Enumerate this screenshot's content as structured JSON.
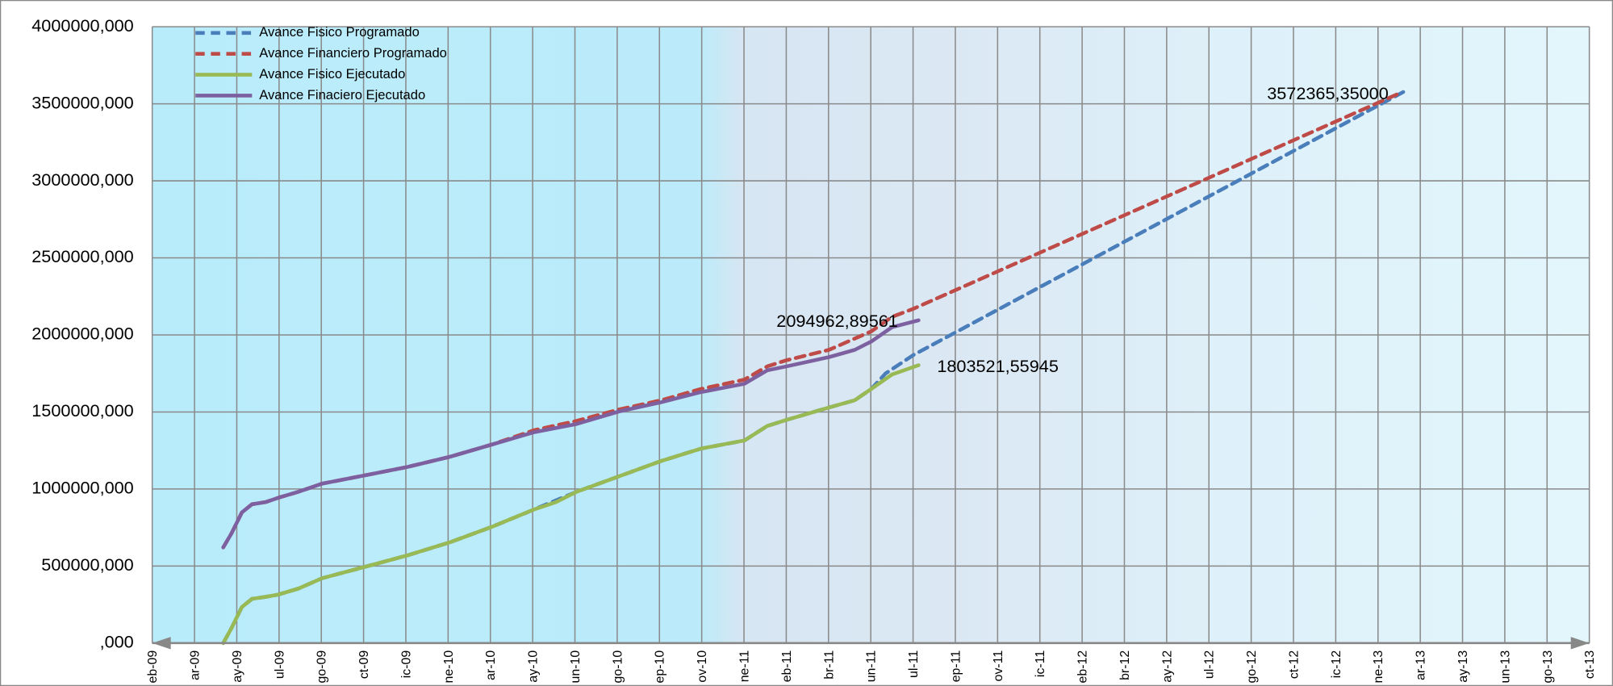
{
  "chart_data": {
    "type": "line",
    "xlim": [
      0,
      34
    ],
    "xticks": [
      {
        "value": 0,
        "label": "eb-09"
      },
      {
        "value": 1,
        "label": "ar-09"
      },
      {
        "value": 2,
        "label": "ay-09"
      },
      {
        "value": 3,
        "label": "ul-09"
      },
      {
        "value": 4,
        "label": "go-09"
      },
      {
        "value": 5,
        "label": "ct-09"
      },
      {
        "value": 6,
        "label": "ic-09"
      },
      {
        "value": 7,
        "label": "ne-10"
      },
      {
        "value": 8,
        "label": "ar-10"
      },
      {
        "value": 9,
        "label": "ay-10"
      },
      {
        "value": 10,
        "label": "un-10"
      },
      {
        "value": 11,
        "label": "go-10"
      },
      {
        "value": 12,
        "label": "ep-10"
      },
      {
        "value": 13,
        "label": "ov-10"
      },
      {
        "value": 14,
        "label": "ne-11"
      },
      {
        "value": 15,
        "label": "eb-11"
      },
      {
        "value": 16,
        "label": "br-11"
      },
      {
        "value": 17,
        "label": "un-11"
      },
      {
        "value": 18,
        "label": "ul-11"
      },
      {
        "value": 19,
        "label": "ep-11"
      },
      {
        "value": 20,
        "label": "ov-11"
      },
      {
        "value": 21,
        "label": "ic-11"
      },
      {
        "value": 22,
        "label": "eb-12"
      },
      {
        "value": 23,
        "label": "br-12"
      },
      {
        "value": 24,
        "label": "ay-12"
      },
      {
        "value": 25,
        "label": "ul-12"
      },
      {
        "value": 26,
        "label": "go-12"
      },
      {
        "value": 27,
        "label": "ct-12"
      },
      {
        "value": 28,
        "label": "ic-12"
      },
      {
        "value": 29,
        "label": "ne-13"
      },
      {
        "value": 30,
        "label": "ar-13"
      },
      {
        "value": 31,
        "label": "ay-13"
      },
      {
        "value": 32,
        "label": "un-13"
      },
      {
        "value": 33,
        "label": "go-13"
      },
      {
        "value": 34,
        "label": "ct-13"
      }
    ],
    "ylim": [
      0,
      4000000
    ],
    "yticks": [
      {
        "value": 0,
        "label": ",000"
      },
      {
        "value": 500000,
        "label": "500000,000"
      },
      {
        "value": 1000000,
        "label": "1000000,000"
      },
      {
        "value": 1500000,
        "label": "1500000,000"
      },
      {
        "value": 2000000,
        "label": "2000000,000"
      },
      {
        "value": 2500000,
        "label": "2500000,000"
      },
      {
        "value": 3000000,
        "label": "3000000,000"
      },
      {
        "value": 3500000,
        "label": "3500000,000"
      },
      {
        "value": 4000000,
        "label": "4000000,000"
      }
    ],
    "grid": true,
    "legend": "top-left",
    "series": [
      {
        "name": "Avance Fisico Programado",
        "color": "#4a7ebb",
        "dashed": true,
        "x": [
          1.68,
          1.88,
          2.12,
          2.36,
          2.68,
          2.97,
          3.46,
          4.02,
          5.02,
          6.02,
          7.04,
          8.04,
          9.04,
          10.04,
          11.04,
          12.04,
          12.98,
          14.01,
          14.55,
          15.01,
          16.01,
          16.62,
          17.01,
          17.35,
          18.01,
          29.71
        ],
        "values": [
          0,
          100000,
          234000,
          287000,
          300000,
          314000,
          354000,
          421000,
          494000,
          568000,
          654000,
          755000,
          868000,
          982000,
          1082000,
          1182000,
          1262000,
          1315000,
          1409000,
          1449000,
          1529000,
          1576000,
          1649000,
          1750000,
          1870000,
          3593000
        ]
      },
      {
        "name": "Avance Financiero Programado",
        "color": "#be4b48",
        "dashed": true,
        "x": [
          1.68,
          1.88,
          2.12,
          2.36,
          2.68,
          2.97,
          3.46,
          4.02,
          5.02,
          6.02,
          7.04,
          8.04,
          9.04,
          10.04,
          11.04,
          12.04,
          12.98,
          14.01,
          14.55,
          15.01,
          16.01,
          17.01,
          17.5,
          18.01,
          29.54
        ],
        "values": [
          621000,
          714500,
          848000,
          901000,
          915000,
          942000,
          982000,
          1035000,
          1088000,
          1142000,
          1209000,
          1289000,
          1382000,
          1442000,
          1516000,
          1576000,
          1649000,
          1710000,
          1796000,
          1836000,
          1903000,
          2023000,
          2117000,
          2170000,
          3572365.35
        ]
      },
      {
        "name": "Avance Fisico Ejecutado",
        "color": "#98b954",
        "dashed": false,
        "x": [
          1.68,
          1.88,
          2.12,
          2.36,
          2.68,
          2.97,
          3.46,
          4.02,
          5.02,
          6.02,
          7.04,
          8.04,
          9.04,
          9.55,
          10.04,
          11.04,
          12.04,
          12.98,
          14.01,
          14.55,
          15.01,
          16.01,
          16.62,
          17.01,
          17.5,
          18.13
        ],
        "values": [
          0,
          100000,
          234000,
          287000,
          300000,
          314000,
          354000,
          421000,
          494000,
          568000,
          654000,
          755000,
          868000,
          915000,
          982000,
          1082000,
          1182000,
          1262000,
          1315000,
          1409000,
          1449000,
          1529000,
          1576000,
          1649000,
          1743000,
          1803521.55945
        ]
      },
      {
        "name": "Avance Finaciero Ejecutado",
        "color": "#7d60a0",
        "dashed": false,
        "x": [
          1.68,
          1.88,
          2.12,
          2.36,
          2.68,
          2.97,
          3.46,
          4.02,
          5.02,
          6.02,
          7.04,
          8.04,
          9.04,
          10.04,
          11.04,
          12.04,
          12.98,
          14.01,
          14.55,
          15.01,
          16.01,
          16.62,
          17.01,
          17.5,
          18.13
        ],
        "values": [
          621000,
          714500,
          848000,
          901000,
          915000,
          942000,
          982000,
          1035000,
          1088000,
          1142000,
          1209000,
          1289000,
          1369000,
          1422000,
          1503000,
          1563000,
          1629000,
          1683000,
          1770000,
          1796000,
          1856000,
          1903000,
          1957000,
          2050000,
          2094962.89561
        ]
      }
    ],
    "annotations": [
      "2094962,89561",
      "1803521,55945",
      "3572365,35000"
    ]
  }
}
